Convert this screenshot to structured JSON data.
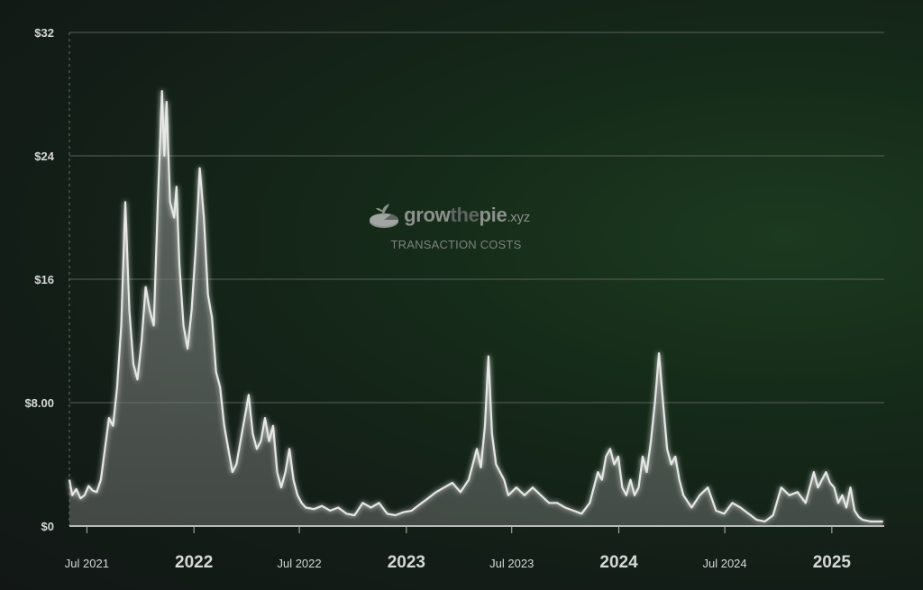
{
  "watermark": {
    "brand_grow": "grow",
    "brand_the": "the",
    "brand_pie": "pie",
    "brand_tld": ".xyz",
    "subtitle": "TRANSACTION COSTS",
    "logo_icon": "pie-logo-icon"
  },
  "colors": {
    "line": "#e6e8e6",
    "area_top": "#8a8d8a",
    "gridline": "#5a605c",
    "axis": "#b8bcb8"
  },
  "chart_data": {
    "type": "area",
    "title": "",
    "xlabel": "",
    "ylabel": "",
    "ylim": [
      0,
      32
    ],
    "xlim": [
      "2021-06-01",
      "2025-04-01"
    ],
    "y_ticks": [
      {
        "value": 0,
        "label": "$0"
      },
      {
        "value": 8,
        "label": "$8.00"
      },
      {
        "value": 16,
        "label": "$16"
      },
      {
        "value": 24,
        "label": "$24"
      },
      {
        "value": 32,
        "label": "$32"
      }
    ],
    "x_ticks": [
      {
        "date": "2021-07-01",
        "label": "Jul 2021",
        "major": false
      },
      {
        "date": "2022-01-01",
        "label": "2022",
        "major": true
      },
      {
        "date": "2022-07-01",
        "label": "Jul 2022",
        "major": false
      },
      {
        "date": "2023-01-01",
        "label": "2023",
        "major": true
      },
      {
        "date": "2023-07-01",
        "label": "Jul 2023",
        "major": false
      },
      {
        "date": "2024-01-01",
        "label": "2024",
        "major": true
      },
      {
        "date": "2024-07-01",
        "label": "Jul 2024",
        "major": false
      },
      {
        "date": "2025-01-01",
        "label": "2025",
        "major": true
      }
    ],
    "grid": true,
    "legend": "none",
    "series": [
      {
        "points": [
          [
            "2021-06-01",
            3.0
          ],
          [
            "2021-06-06",
            2.0
          ],
          [
            "2021-06-13",
            2.4
          ],
          [
            "2021-06-20",
            1.8
          ],
          [
            "2021-06-27",
            2.0
          ],
          [
            "2021-07-04",
            2.6
          ],
          [
            "2021-07-11",
            2.3
          ],
          [
            "2021-07-18",
            2.2
          ],
          [
            "2021-07-25",
            3.0
          ],
          [
            "2021-08-01",
            5.0
          ],
          [
            "2021-08-08",
            7.0
          ],
          [
            "2021-08-15",
            6.5
          ],
          [
            "2021-08-22",
            9.0
          ],
          [
            "2021-08-29",
            13.0
          ],
          [
            "2021-09-05",
            21.0
          ],
          [
            "2021-09-12",
            14.0
          ],
          [
            "2021-09-19",
            10.5
          ],
          [
            "2021-09-26",
            9.5
          ],
          [
            "2021-10-03",
            12.0
          ],
          [
            "2021-10-10",
            15.5
          ],
          [
            "2021-10-17",
            14.0
          ],
          [
            "2021-10-24",
            13.0
          ],
          [
            "2021-10-31",
            21.0
          ],
          [
            "2021-11-07",
            28.2
          ],
          [
            "2021-11-11",
            24.0
          ],
          [
            "2021-11-15",
            27.5
          ],
          [
            "2021-11-21",
            21.0
          ],
          [
            "2021-11-28",
            20.0
          ],
          [
            "2021-12-02",
            22.0
          ],
          [
            "2021-12-07",
            17.0
          ],
          [
            "2021-12-14",
            13.0
          ],
          [
            "2021-12-21",
            11.5
          ],
          [
            "2021-12-28",
            14.0
          ],
          [
            "2022-01-04",
            18.0
          ],
          [
            "2022-01-11",
            23.2
          ],
          [
            "2022-01-18",
            20.0
          ],
          [
            "2022-01-25",
            15.0
          ],
          [
            "2022-02-01",
            13.5
          ],
          [
            "2022-02-08",
            10.0
          ],
          [
            "2022-02-15",
            9.0
          ],
          [
            "2022-02-22",
            6.5
          ],
          [
            "2022-03-01",
            5.0
          ],
          [
            "2022-03-08",
            3.5
          ],
          [
            "2022-03-15",
            4.0
          ],
          [
            "2022-03-22",
            5.5
          ],
          [
            "2022-03-29",
            7.0
          ],
          [
            "2022-04-05",
            8.5
          ],
          [
            "2022-04-12",
            6.0
          ],
          [
            "2022-04-19",
            5.0
          ],
          [
            "2022-04-26",
            5.5
          ],
          [
            "2022-05-03",
            7.0
          ],
          [
            "2022-05-10",
            5.5
          ],
          [
            "2022-05-17",
            6.5
          ],
          [
            "2022-05-24",
            3.5
          ],
          [
            "2022-05-31",
            2.5
          ],
          [
            "2022-06-07",
            3.5
          ],
          [
            "2022-06-14",
            5.0
          ],
          [
            "2022-06-21",
            3.0
          ],
          [
            "2022-06-28",
            2.0
          ],
          [
            "2022-07-05",
            1.5
          ],
          [
            "2022-07-12",
            1.2
          ],
          [
            "2022-07-26",
            1.1
          ],
          [
            "2022-08-09",
            1.3
          ],
          [
            "2022-08-23",
            1.0
          ],
          [
            "2022-09-06",
            1.2
          ],
          [
            "2022-09-20",
            0.8
          ],
          [
            "2022-10-04",
            0.7
          ],
          [
            "2022-10-18",
            1.5
          ],
          [
            "2022-11-01",
            1.2
          ],
          [
            "2022-11-15",
            1.5
          ],
          [
            "2022-11-29",
            0.8
          ],
          [
            "2022-12-13",
            0.7
          ],
          [
            "2022-12-27",
            0.9
          ],
          [
            "2023-01-10",
            1.0
          ],
          [
            "2023-01-24",
            1.4
          ],
          [
            "2023-02-07",
            1.8
          ],
          [
            "2023-02-21",
            2.2
          ],
          [
            "2023-03-07",
            2.5
          ],
          [
            "2023-03-21",
            2.8
          ],
          [
            "2023-04-04",
            2.2
          ],
          [
            "2023-04-18",
            3.0
          ],
          [
            "2023-05-02",
            5.0
          ],
          [
            "2023-05-09",
            3.8
          ],
          [
            "2023-05-16",
            6.5
          ],
          [
            "2023-05-22",
            11.0
          ],
          [
            "2023-05-28",
            6.0
          ],
          [
            "2023-06-04",
            4.0
          ],
          [
            "2023-06-11",
            3.5
          ],
          [
            "2023-06-18",
            3.0
          ],
          [
            "2023-06-25",
            2.0
          ],
          [
            "2023-07-09",
            2.5
          ],
          [
            "2023-07-23",
            2.0
          ],
          [
            "2023-08-06",
            2.5
          ],
          [
            "2023-08-20",
            2.0
          ],
          [
            "2023-09-03",
            1.5
          ],
          [
            "2023-09-17",
            1.5
          ],
          [
            "2023-10-01",
            1.2
          ],
          [
            "2023-10-15",
            1.0
          ],
          [
            "2023-10-29",
            0.8
          ],
          [
            "2023-11-12",
            1.5
          ],
          [
            "2023-11-26",
            3.5
          ],
          [
            "2023-12-03",
            3.0
          ],
          [
            "2023-12-10",
            4.5
          ],
          [
            "2023-12-17",
            5.0
          ],
          [
            "2023-12-24",
            4.0
          ],
          [
            "2023-12-31",
            4.5
          ],
          [
            "2024-01-07",
            2.5
          ],
          [
            "2024-01-14",
            2.0
          ],
          [
            "2024-01-21",
            3.0
          ],
          [
            "2024-01-28",
            2.0
          ],
          [
            "2024-02-04",
            2.5
          ],
          [
            "2024-02-11",
            4.5
          ],
          [
            "2024-02-18",
            3.5
          ],
          [
            "2024-02-25",
            5.5
          ],
          [
            "2024-03-03",
            8.0
          ],
          [
            "2024-03-10",
            11.2
          ],
          [
            "2024-03-17",
            8.0
          ],
          [
            "2024-03-24",
            5.0
          ],
          [
            "2024-03-31",
            4.0
          ],
          [
            "2024-04-07",
            4.5
          ],
          [
            "2024-04-14",
            3.0
          ],
          [
            "2024-04-21",
            2.0
          ],
          [
            "2024-05-05",
            1.2
          ],
          [
            "2024-05-19",
            2.0
          ],
          [
            "2024-06-02",
            2.5
          ],
          [
            "2024-06-16",
            1.0
          ],
          [
            "2024-06-30",
            0.8
          ],
          [
            "2024-07-14",
            1.5
          ],
          [
            "2024-07-28",
            1.2
          ],
          [
            "2024-08-11",
            0.8
          ],
          [
            "2024-08-25",
            0.4
          ],
          [
            "2024-09-08",
            0.3
          ],
          [
            "2024-09-22",
            0.7
          ],
          [
            "2024-10-06",
            2.5
          ],
          [
            "2024-10-20",
            2.0
          ],
          [
            "2024-11-03",
            2.2
          ],
          [
            "2024-11-17",
            1.5
          ],
          [
            "2024-12-01",
            3.5
          ],
          [
            "2024-12-08",
            2.5
          ],
          [
            "2024-12-15",
            3.0
          ],
          [
            "2024-12-22",
            3.5
          ],
          [
            "2024-12-29",
            2.8
          ],
          [
            "2025-01-05",
            2.5
          ],
          [
            "2025-01-12",
            1.5
          ],
          [
            "2025-01-19",
            2.0
          ],
          [
            "2025-01-26",
            1.2
          ],
          [
            "2025-02-02",
            2.5
          ],
          [
            "2025-02-09",
            1.0
          ],
          [
            "2025-02-16",
            0.6
          ],
          [
            "2025-02-23",
            0.4
          ],
          [
            "2025-03-09",
            0.3
          ],
          [
            "2025-03-30",
            0.3
          ]
        ]
      }
    ]
  }
}
